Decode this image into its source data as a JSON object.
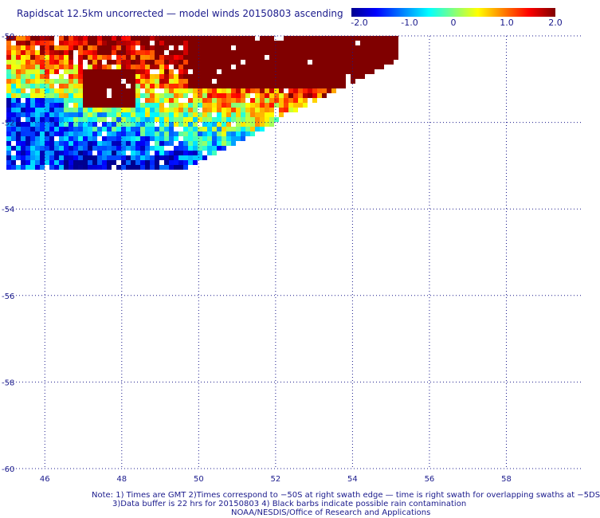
{
  "title": "Rapidscat 12.5km uncorrected — model winds 20150803 ascending",
  "colorbar": {
    "labels": [
      "-2.0",
      "-1.0",
      "0",
      "1.0",
      "2.0"
    ],
    "min": -2.0,
    "max": 2.0,
    "colors": [
      "#00008f",
      "#0000ff",
      "#00ffff",
      "#ffff00",
      "#ff0000",
      "#800000"
    ]
  },
  "map": {
    "lon_range": [
      45.0,
      60.0
    ],
    "lat_range": [
      -60.0,
      -50.0
    ],
    "lon_ticks": [
      46,
      48,
      50,
      52,
      54,
      56,
      58
    ],
    "lat_ticks": [
      -50,
      -52,
      -54,
      -56,
      -58,
      -60
    ],
    "lon_tick_labels": [
      "46",
      "48",
      "50",
      "52",
      "54",
      "56",
      "58"
    ],
    "lat_tick_labels": [
      "-50",
      "-52",
      "-54",
      "-56",
      "-58",
      "-60"
    ],
    "grid": true,
    "grid_color": "#1a1a8c"
  },
  "notes": {
    "line1": "Note: 1) Times are GMT 2)Times correspond to −50S at right swath edge — time is right swath for overlapping swaths at −5DS",
    "line2": "3)Data buffer is 22 hrs for 20150803 4) Black barbs indicate possible rain contamination",
    "line3": "NOAA/NESDIS/Office of Research and Applications"
  }
}
